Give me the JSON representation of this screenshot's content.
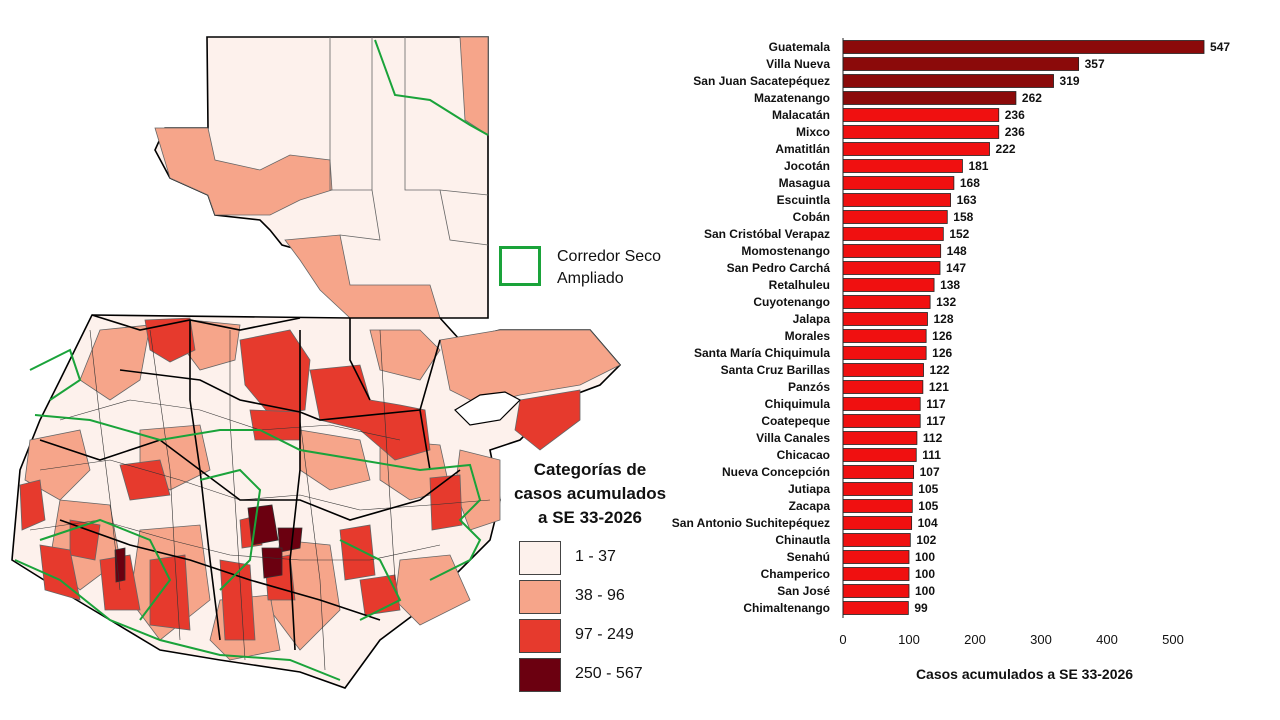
{
  "legend": {
    "corridor_label": "Corredor Seco\nAmpliado",
    "corridor_color": "#1aa33a",
    "categories_title": "Categorías de\ncasos acumulados\na SE 33-2026",
    "categories": [
      {
        "label": "1 - 37",
        "color": "#fdf1ec"
      },
      {
        "label": "38 - 96",
        "color": "#f6a58a"
      },
      {
        "label": "97 - 249",
        "color": "#e63a2d"
      },
      {
        "label": "250 - 567",
        "color": "#6b0010"
      }
    ]
  },
  "chart_data": {
    "type": "bar",
    "orientation": "horizontal",
    "categories": [
      "Guatemala",
      "Villa Nueva",
      "San Juan Sacatepéquez",
      "Mazatenango",
      "Malacatán",
      "Mixco",
      "Amatitlán",
      "Jocotán",
      "Masagua",
      "Escuintla",
      "Cobán",
      "San Cristóbal Verapaz",
      "Momostenango",
      "San Pedro Carchá",
      "Retalhuleu",
      "Cuyotenango",
      "Jalapa",
      "Morales",
      "Santa María Chiquimula",
      "Santa Cruz Barillas",
      "Panzós",
      "Chiquimula",
      "Coatepeque",
      "Villa Canales",
      "Chicacao",
      "Nueva Concepción",
      "Jutiapa",
      "Zacapa",
      "San Antonio Suchitepéquez",
      "Chinautla",
      "Senahú",
      "Champerico",
      "San José",
      "Chimaltenango"
    ],
    "values": [
      547,
      357,
      319,
      262,
      236,
      236,
      222,
      181,
      168,
      163,
      158,
      152,
      148,
      147,
      138,
      132,
      128,
      126,
      126,
      122,
      121,
      117,
      117,
      112,
      111,
      107,
      105,
      105,
      104,
      102,
      100,
      100,
      100,
      99
    ],
    "xlabel": "Casos acumulados a SE 33-2026",
    "xlim": [
      0,
      550
    ],
    "xticks": [
      0,
      100,
      200,
      300,
      400,
      500
    ],
    "colors": {
      "high": "#8b0a0a",
      "mid": "#f01010"
    },
    "threshold_high": 250
  }
}
